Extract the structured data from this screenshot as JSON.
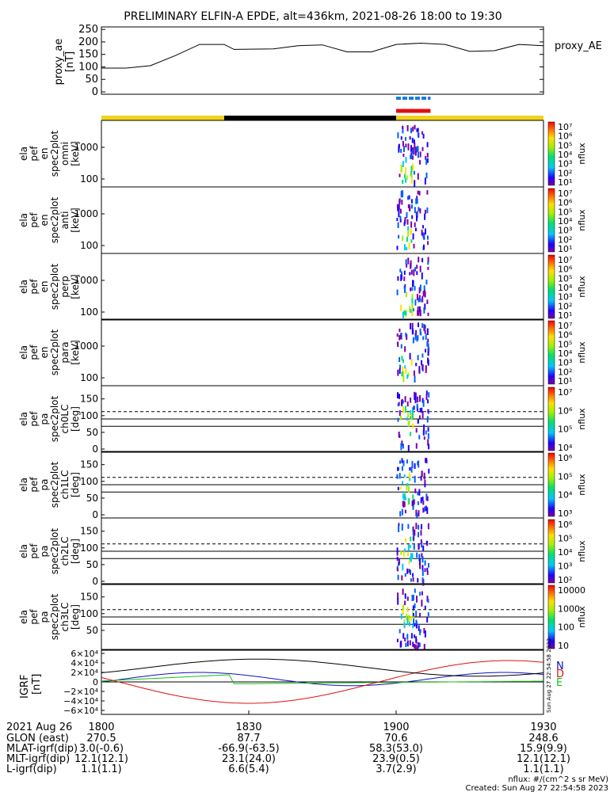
{
  "title": "PRELIMINARY ELFIN-A EPDE, alt=436km, 2021-08-26 18:00 to 19:30",
  "colors": {
    "yellow": "#f2d31b",
    "black": "#000000",
    "blue": "#1a7be0",
    "red": "#e01010",
    "green": "#18c018",
    "darkblue": "#1010c0"
  },
  "time_axis": {
    "start": "18:00",
    "end": "19:30",
    "ticks": [
      "1800",
      "1830",
      "1900",
      "1930"
    ]
  },
  "science_zone_bar": {
    "segments": [
      {
        "from": "18:00",
        "to": "18:25",
        "color": "yellow"
      },
      {
        "from": "18:25",
        "to": "19:00",
        "color": "black"
      },
      {
        "from": "19:00",
        "to": "19:30",
        "color": "yellow"
      }
    ]
  },
  "markers": {
    "blue_dashed": {
      "from": "19:00",
      "to": "19:07",
      "color": "blue"
    },
    "red_solid": {
      "from": "19:00",
      "to": "19:07",
      "color": "red"
    }
  },
  "panels": {
    "proxy_ae": {
      "ylabel_lines": [
        "proxy_ae",
        "[nT]"
      ],
      "legend": "proxy_AE",
      "yticks": [
        "250",
        "200",
        "150",
        "100",
        "50",
        "0"
      ],
      "ylim": [
        0,
        260
      ]
    },
    "energy": [
      {
        "label_lines": [
          "ela",
          "pef",
          "en",
          "spec2plot",
          "omni",
          "[keV]"
        ],
        "cbar_max_exp": "7",
        "cbar_ticks": [
          "10⁷",
          "10⁶",
          "10⁵",
          "10⁴",
          "10³",
          "10²",
          "10¹"
        ],
        "cbar_label": "nflux",
        "yticks": [
          "1000",
          "100"
        ]
      },
      {
        "label_lines": [
          "ela",
          "pef",
          "en",
          "spec2plot",
          "anti",
          "[keV]"
        ],
        "cbar_max_exp": "7",
        "cbar_ticks": [
          "10⁷",
          "10⁶",
          "10⁵",
          "10⁴",
          "10³",
          "10²",
          "10¹"
        ],
        "cbar_label": "nflux",
        "yticks": [
          "1000",
          "100"
        ]
      },
      {
        "label_lines": [
          "ela",
          "pef",
          "en",
          "spec2plot",
          "perp",
          "[keV]"
        ],
        "cbar_max_exp": "7",
        "cbar_ticks": [
          "10⁷",
          "10⁶",
          "10⁵",
          "10⁴",
          "10³",
          "10²",
          "10¹"
        ],
        "cbar_label": "nflux",
        "yticks": [
          "1000",
          "100"
        ]
      },
      {
        "label_lines": [
          "ela",
          "pef",
          "en",
          "spec2plot",
          "para",
          "[keV]"
        ],
        "cbar_max_exp": "7",
        "cbar_ticks": [
          "10⁷",
          "10⁶",
          "10⁵",
          "10⁴",
          "10³",
          "10²",
          "10¹"
        ],
        "cbar_label": "nflux",
        "yticks": [
          "1000",
          "100"
        ]
      }
    ],
    "pitch": [
      {
        "label_lines": [
          "ela",
          "pef",
          "pa",
          "spec2plot",
          "ch0LC",
          "[deg]"
        ],
        "cbar_ticks": [
          "10⁷",
          "10⁶",
          "10⁵",
          "10⁴"
        ],
        "cbar_label": "nflux",
        "yticks": [
          "150",
          "100",
          "50",
          "0"
        ]
      },
      {
        "label_lines": [
          "ela",
          "pef",
          "pa",
          "spec2plot",
          "ch1LC",
          "[deg]"
        ],
        "cbar_ticks": [
          "10⁶",
          "10⁵",
          "10⁴",
          "10³"
        ],
        "cbar_label": "nflux",
        "yticks": [
          "150",
          "100",
          "50",
          "0"
        ]
      },
      {
        "label_lines": [
          "ela",
          "pef",
          "pa",
          "spec2plot",
          "ch2LC",
          "[deg]"
        ],
        "cbar_ticks": [
          "10⁶",
          "10⁵",
          "10⁴",
          "10³",
          "10²"
        ],
        "cbar_label": "nflux",
        "yticks": [
          "150",
          "100",
          "50",
          "0"
        ]
      },
      {
        "label_lines": [
          "ela",
          "pef",
          "pa",
          "spec2plot",
          "ch3LC",
          "[deg]"
        ],
        "cbar_ticks": [
          "10000",
          "1000",
          "100",
          "10"
        ],
        "cbar_label": "nflux",
        "yticks": [
          "150",
          "100",
          "50"
        ]
      }
    ],
    "igrf": {
      "ylabel_lines": [
        "IGRF",
        "[nT]"
      ],
      "yticks": [
        "6×10⁴",
        "4×10⁴",
        "2×10⁴",
        "0",
        "−2×10⁴",
        "−4×10⁴",
        "−6×10⁴"
      ],
      "legend": [
        "N",
        "E",
        "D"
      ],
      "stamp": "Sun Aug 27 22:54:58 2023"
    }
  },
  "ephemeris": {
    "date": "2021 Aug 26",
    "rows": [
      {
        "label": "GLON (east)",
        "values": [
          "270.5",
          "87.7",
          "70.6",
          "248.6"
        ]
      },
      {
        "label": "MLAT-igrf(dip)",
        "values": [
          "3.0(-0.6)",
          "-66.9(-63.5)",
          "58.3(53.0)",
          "15.9(9.9)"
        ]
      },
      {
        "label": "MLT-igrf(dip)",
        "values": [
          "12.1(12.1)",
          "23.1(24.0)",
          "23.9(0.5)",
          "12.1(12.1)"
        ]
      },
      {
        "label": "L-igrf(dip)",
        "values": [
          "1.1(1.1)",
          "6.6(5.4)",
          "3.7(2.9)",
          "1.1(1.1)"
        ]
      }
    ]
  },
  "footer": {
    "units": "nflux: #/(cm^2 s sr MeV)",
    "created": "Created: Sun Aug 27 22:54:58 2023"
  }
}
